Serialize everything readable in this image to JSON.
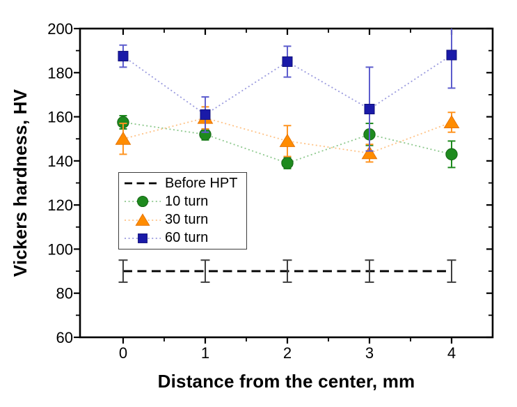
{
  "chart_data": {
    "type": "scatter",
    "title": "",
    "xlabel": "Distance from the center, mm",
    "ylabel": "Vickers hardness, HV",
    "xlim": [
      -0.525,
      4.5
    ],
    "ylim": [
      60,
      200
    ],
    "grid": false,
    "legend_position": "inside-center-left",
    "x_major_ticks": [
      0,
      1,
      2,
      3,
      4
    ],
    "x_minor_ticks": [
      0.5,
      1.5,
      2.5,
      3.5
    ],
    "y_major_ticks": [
      60,
      80,
      100,
      120,
      140,
      160,
      180,
      200
    ],
    "y_minor_ticks": [
      70,
      90,
      110,
      130,
      150,
      170,
      190
    ],
    "x": [
      0,
      1,
      2,
      3,
      4
    ],
    "series": [
      {
        "name": "Before HPT",
        "marker": "none",
        "line": "dashed",
        "color": "#000000",
        "line_color": "#000000",
        "err_color": "#3d3d3d",
        "values": [
          90,
          90,
          90,
          90,
          90
        ],
        "err": [
          5,
          5,
          5,
          5,
          5
        ]
      },
      {
        "name": "10 turn",
        "marker": "circle",
        "line": "dotted",
        "color": "#1e8a1e",
        "edge": "#156515",
        "line_color": "#8cc88c",
        "err_color": "#1e8a1e",
        "values": [
          157.5,
          152,
          139,
          152,
          143
        ],
        "err": [
          3,
          2.5,
          2.5,
          5,
          6
        ]
      },
      {
        "name": "30 turn",
        "marker": "triangle",
        "line": "dotted",
        "color": "#ff8c00",
        "edge": "#e67300",
        "line_color": "#ffc285",
        "err_color": "#ff9420",
        "values": [
          150,
          159.5,
          149,
          143.5,
          157.5
        ],
        "err": [
          7,
          5,
          7,
          4,
          4.5
        ]
      },
      {
        "name": "60 turn",
        "marker": "square",
        "line": "dotted",
        "color": "#1a1aa8",
        "edge": "#10107a",
        "line_color": "#9a9ade",
        "err_color": "#5c5ccd",
        "values": [
          187.5,
          161,
          185,
          163.5,
          188
        ],
        "err": [
          5,
          8,
          7,
          19,
          15
        ]
      }
    ]
  }
}
